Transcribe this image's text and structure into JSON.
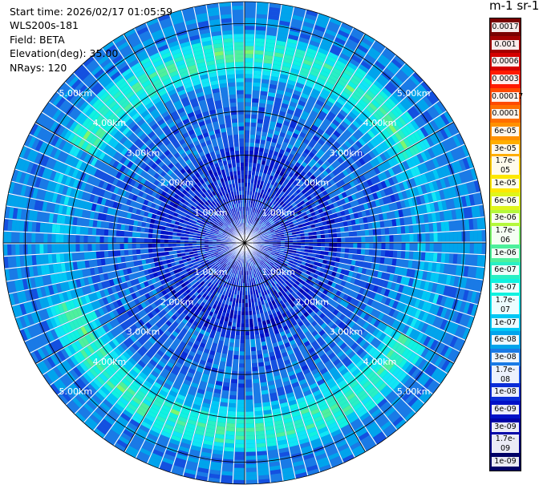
{
  "info": {
    "start_time": "Start time: 2026/02/17 01:05:59",
    "instrument": "WLS200s-181",
    "field": "Field: BETA",
    "elevation": "Elevation(deg): 35.00",
    "nrays": "NRays: 120"
  },
  "colorbar": {
    "title": "m-1 sr-1",
    "entries": [
      {
        "label": "0.0017",
        "color": "#7a0000"
      },
      {
        "label": "0.001",
        "color": "#a40000"
      },
      {
        "label": "0.0006",
        "color": "#d40000"
      },
      {
        "label": "0.0003",
        "color": "#ff1a00"
      },
      {
        "label": "0.00017",
        "color": "#ff4a00"
      },
      {
        "label": "0.0001",
        "color": "#ff6e00"
      },
      {
        "label": "6e-05",
        "color": "#ff9000"
      },
      {
        "label": "3e-05",
        "color": "#ffae00"
      },
      {
        "label": "1.7e-05",
        "color": "#ffcc00"
      },
      {
        "label": "1e-05",
        "color": "#fde800"
      },
      {
        "label": "6e-06",
        "color": "#e0f51a"
      },
      {
        "label": "3e-06",
        "color": "#b4f83c"
      },
      {
        "label": "1.7e-06",
        "color": "#7ef66e"
      },
      {
        "label": "1e-06",
        "color": "#4ef09c"
      },
      {
        "label": "6e-07",
        "color": "#28f0c4"
      },
      {
        "label": "3e-07",
        "color": "#10f2e0"
      },
      {
        "label": "1.7e-07",
        "color": "#10e6f5"
      },
      {
        "label": "1e-07",
        "color": "#00c8f5"
      },
      {
        "label": "6e-08",
        "color": "#00a4ec"
      },
      {
        "label": "3e-08",
        "color": "#1a7ae6"
      },
      {
        "label": "1.7e-08",
        "color": "#1450e0"
      },
      {
        "label": "1e-08",
        "color": "#0a2cd8"
      },
      {
        "label": "6e-09",
        "color": "#0010c8"
      },
      {
        "label": "3e-09",
        "color": "#0000a8"
      },
      {
        "label": "1.7e-09",
        "color": "#00008a"
      },
      {
        "label": "1e-09",
        "color": "#000066"
      }
    ]
  },
  "chart_data": {
    "type": "heatmap",
    "subtype": "polar-ppi",
    "max_range_km": 5.5,
    "range_rings_km": [
      1,
      2,
      3,
      4,
      5
    ],
    "range_labels": [
      "1.00km",
      "2.00km",
      "3.00km",
      "4.00km",
      "5.00km"
    ],
    "n_rays": 120,
    "grid_spokes_deg": [
      0,
      30,
      60,
      90,
      120,
      150,
      180,
      210,
      240,
      270,
      300,
      330
    ],
    "field": "BETA",
    "elevation_deg": 35.0,
    "annular_maxima_km": 4.3,
    "high_sectors_deg": [
      [
        -60,
        60
      ],
      [
        120,
        250
      ],
      [
        300,
        330
      ]
    ]
  }
}
